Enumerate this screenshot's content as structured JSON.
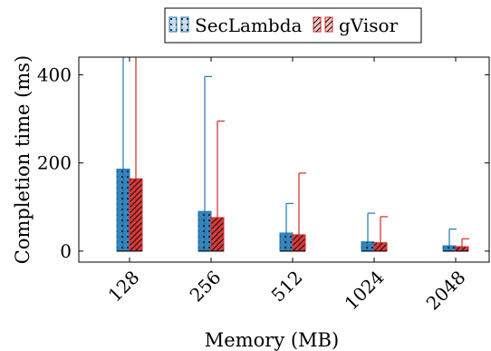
{
  "chart_data": {
    "type": "bar",
    "xlabel": "Memory (MB)",
    "ylabel": "Completion time (ms)",
    "categories": [
      "128",
      "256",
      "512",
      "1024",
      "2048"
    ],
    "yticks": [
      0,
      200,
      400
    ],
    "ylim": [
      -25,
      440
    ],
    "grid": false,
    "legend_position": "top-center",
    "series": [
      {
        "name": "SecLambda",
        "color": "#1f77b4",
        "pattern": "dots",
        "values": [
          186,
          90,
          41,
          21,
          12
        ],
        "whisker_top": [
          440,
          396,
          108,
          86,
          50
        ]
      },
      {
        "name": "gVisor",
        "color": "#d62728",
        "pattern": "diagonal-hatch",
        "values": [
          164,
          76,
          37,
          19,
          10
        ],
        "whisker_top": [
          440,
          295,
          177,
          78,
          28
        ]
      }
    ]
  }
}
